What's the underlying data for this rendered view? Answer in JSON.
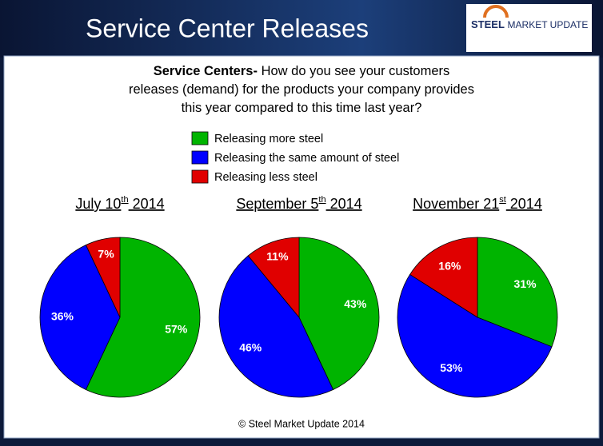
{
  "slide": {
    "title": "Service Center Releases",
    "logo_bold": "STEEL",
    "logo_rest": "MARKET UPDATE",
    "question_bold": "Service Centers-",
    "question": "How do you  see your customers releases (demand) for the products your company provides this year compared to this time last year?",
    "footer": "© Steel Market Update 2014"
  },
  "chart_data": [
    {
      "type": "pie",
      "title": "July 10th 2014",
      "categories": [
        "Releasing more steel",
        "Releasing the same amount of steel",
        "Releasing less steel"
      ],
      "colors": [
        "#00b400",
        "#0000ff",
        "#e00000"
      ],
      "values": [
        57,
        36,
        7
      ],
      "value_labels": [
        "57%",
        "36%",
        "7%"
      ]
    },
    {
      "type": "pie",
      "title": "September 5th 2014",
      "categories": [
        "Releasing more steel",
        "Releasing the same amount of steel",
        "Releasing less steel"
      ],
      "colors": [
        "#00b400",
        "#0000ff",
        "#e00000"
      ],
      "values": [
        43,
        46,
        11
      ],
      "value_labels": [
        "43%",
        "46%",
        "11%"
      ]
    },
    {
      "type": "pie",
      "title": "November 21st 2014",
      "categories": [
        "Releasing more steel",
        "Releasing the same amount of steel",
        "Releasing less steel"
      ],
      "colors": [
        "#00b400",
        "#0000ff",
        "#e00000"
      ],
      "values": [
        31,
        53,
        16
      ],
      "value_labels": [
        "31%",
        "53%",
        "16%"
      ]
    }
  ]
}
